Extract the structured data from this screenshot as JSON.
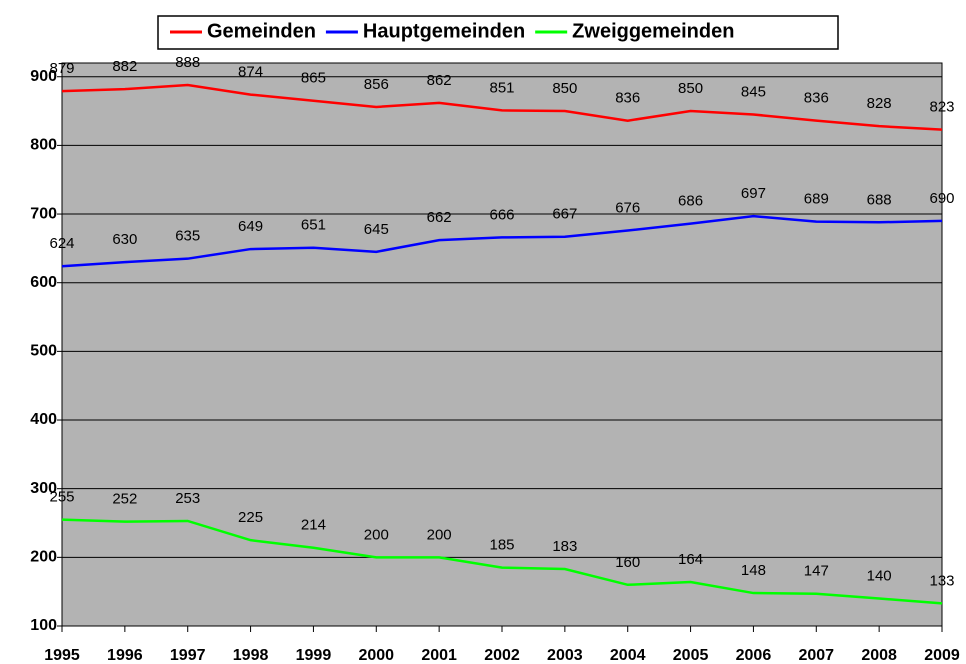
{
  "chart_data": {
    "type": "line",
    "categories": [
      "1995",
      "1996",
      "1997",
      "1998",
      "1999",
      "2000",
      "2001",
      "2002",
      "2003",
      "2004",
      "2005",
      "2006",
      "2007",
      "2008",
      "2009"
    ],
    "series": [
      {
        "name": "Gemeinden",
        "color": "#ff0000",
        "values": [
          879,
          882,
          888,
          874,
          865,
          856,
          862,
          851,
          850,
          836,
          850,
          845,
          836,
          828,
          823
        ]
      },
      {
        "name": "Hauptgemeinden",
        "color": "#0000ff",
        "values": [
          624,
          630,
          635,
          649,
          651,
          645,
          662,
          666,
          667,
          676,
          686,
          697,
          689,
          688,
          690
        ]
      },
      {
        "name": "Zweiggemeinden",
        "color": "#00ff00",
        "values": [
          255,
          252,
          253,
          225,
          214,
          200,
          200,
          185,
          183,
          160,
          164,
          148,
          147,
          140,
          133
        ]
      }
    ],
    "ylim": [
      100,
      920
    ],
    "yticks": [
      100,
      200,
      300,
      400,
      500,
      600,
      700,
      800,
      900
    ],
    "grid": true,
    "legend": "top"
  }
}
